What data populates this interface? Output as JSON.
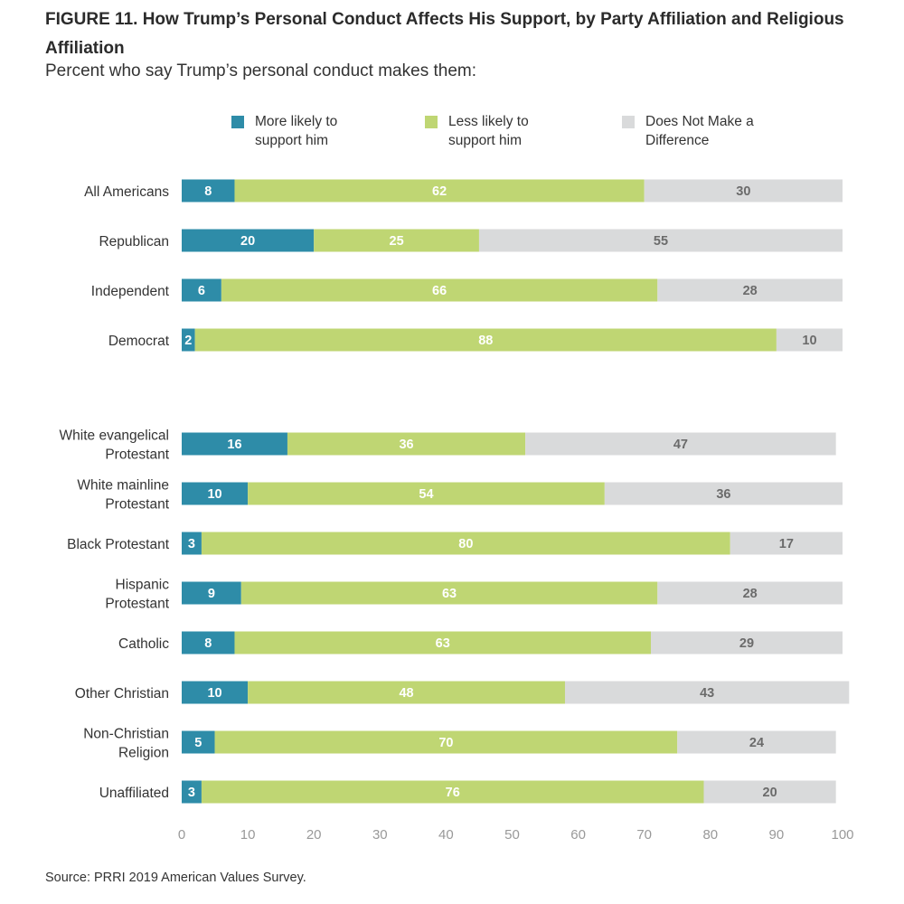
{
  "title": "FIGURE 11.  How Trump’s Personal Conduct Affects His Support, by Party Affiliation and Religious Affiliation",
  "subtitle": "Percent who say Trump’s personal conduct makes them:",
  "source": "Source: PRRI 2019 American Values Survey.",
  "legend": [
    {
      "lines": [
        "More likely to",
        "support him"
      ],
      "color": "#2e8ca8"
    },
    {
      "lines": [
        "Less likely to",
        "support him"
      ],
      "color": "#bfd673"
    },
    {
      "lines": [
        "Does Not Make a",
        "Difference"
      ],
      "color": "#d9dadb"
    }
  ],
  "chart_data": {
    "type": "bar",
    "orientation": "horizontal",
    "stacked": true,
    "title": "FIGURE 11.  How Trump’s Personal Conduct Affects His Support, by Party Affiliation and Religious Affiliation",
    "subtitle": "Percent who say Trump’s personal conduct makes them:",
    "legend_position": "top",
    "grid": false,
    "xlim": [
      0,
      100
    ],
    "xticks": [
      0,
      10,
      20,
      30,
      40,
      50,
      60,
      70,
      80,
      90,
      100
    ],
    "groups": [
      {
        "categories": [
          [
            "All Americans"
          ],
          [
            "Republican"
          ],
          [
            "Independent"
          ],
          [
            "Democrat"
          ]
        ]
      },
      {
        "categories": [
          [
            "White evangelical",
            "Protestant"
          ],
          [
            "White mainline",
            "Protestant"
          ],
          [
            "Black Protestant"
          ],
          [
            "Hispanic",
            "Protestant"
          ],
          [
            "Catholic"
          ],
          [
            "Other Christian"
          ],
          [
            "Non-Christian",
            "Religion"
          ],
          [
            "Unaffiliated"
          ]
        ]
      }
    ],
    "series": [
      {
        "name": "More likely to support him",
        "color": "#2e8ca8",
        "label_color": "#ffffff",
        "values": [
          8,
          20,
          6,
          2,
          16,
          10,
          3,
          9,
          8,
          10,
          5,
          3
        ]
      },
      {
        "name": "Less likely to support him",
        "color": "#bfd673",
        "label_color": "#ffffff",
        "values": [
          62,
          25,
          66,
          88,
          36,
          54,
          80,
          63,
          63,
          48,
          70,
          76
        ]
      },
      {
        "name": "Does Not Make a Difference",
        "color": "#d9dadb",
        "label_color": "#6b6b6b",
        "values": [
          30,
          55,
          28,
          10,
          47,
          36,
          17,
          28,
          29,
          43,
          24,
          20
        ]
      }
    ]
  }
}
